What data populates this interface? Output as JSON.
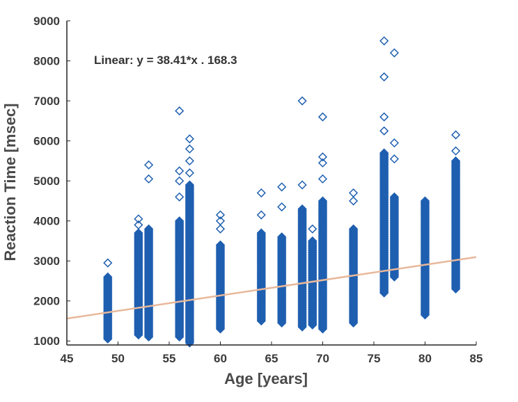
{
  "chart_data": {
    "type": "scatter",
    "title": "",
    "xlabel": "Age [years]",
    "ylabel": "Reaction Time [msec]",
    "xlim": [
      45,
      85
    ],
    "ylim": [
      900,
      9000
    ],
    "x_ticks": [
      45,
      50,
      55,
      60,
      65,
      70,
      75,
      80,
      85
    ],
    "y_ticks": [
      1000,
      2000,
      3000,
      4000,
      5000,
      6000,
      7000,
      8000,
      9000
    ],
    "x_tick_labels": [
      "45",
      "50",
      "55",
      "60",
      "65",
      "70",
      "75",
      "80",
      "85"
    ],
    "y_tick_labels": [
      "1000",
      "2000",
      "3000",
      "4000",
      "5000",
      "6000",
      "7000",
      "8000",
      "9000"
    ],
    "grid": false,
    "marker_color": "#1f5fb0",
    "fit_color": "#e8b89a",
    "annotation": "Linear:  y = 38.41*x . 168.3",
    "fit": {
      "slope": 38.41,
      "intercept": -168.3
    },
    "groups": [
      {
        "x": 49,
        "range": [
          1050,
          2600
        ],
        "outliers": [
          2950
        ]
      },
      {
        "x": 52,
        "range": [
          1150,
          3700
        ],
        "outliers": [
          3900,
          4050
        ]
      },
      {
        "x": 53,
        "range": [
          1100,
          3800
        ],
        "outliers": [
          5050,
          5400
        ]
      },
      {
        "x": 56,
        "range": [
          1100,
          4000
        ],
        "outliers": [
          4600,
          5000,
          5250,
          6750
        ]
      },
      {
        "x": 57,
        "range": [
          950,
          4900
        ],
        "outliers": [
          5200,
          5500,
          5800,
          6050
        ]
      },
      {
        "x": 60,
        "range": [
          1300,
          3400
        ],
        "outliers": [
          3800,
          4000,
          4150
        ]
      },
      {
        "x": 64,
        "range": [
          1500,
          3700
        ],
        "outliers": [
          4150,
          4700
        ]
      },
      {
        "x": 66,
        "range": [
          1450,
          3600
        ],
        "outliers": [
          4350,
          4850
        ]
      },
      {
        "x": 68,
        "range": [
          1350,
          4300
        ],
        "outliers": [
          4900,
          7000
        ]
      },
      {
        "x": 69,
        "range": [
          1400,
          3500
        ],
        "outliers": [
          3800
        ]
      },
      {
        "x": 70,
        "range": [
          1300,
          4500
        ],
        "outliers": [
          5050,
          5450,
          5600,
          6600
        ]
      },
      {
        "x": 73,
        "range": [
          1450,
          3800
        ],
        "outliers": [
          4500,
          4700
        ]
      },
      {
        "x": 76,
        "range": [
          2200,
          5700
        ],
        "outliers": [
          6250,
          6600,
          7600,
          8500
        ]
      },
      {
        "x": 77,
        "range": [
          2600,
          4600
        ],
        "outliers": [
          5550,
          5950,
          8200
        ]
      },
      {
        "x": 80,
        "range": [
          1650,
          4500
        ],
        "outliers": []
      },
      {
        "x": 83,
        "range": [
          2300,
          5500
        ],
        "outliers": [
          5750,
          6150
        ]
      }
    ]
  }
}
